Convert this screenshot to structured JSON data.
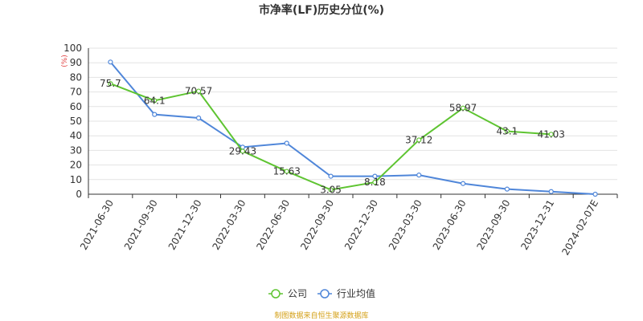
{
  "chart_data": {
    "type": "line",
    "title": "市净率(LF)历史分位(%)",
    "unit_label": "(%)",
    "ylim": [
      0,
      100
    ],
    "yticks": [
      0,
      10,
      20,
      30,
      40,
      50,
      60,
      70,
      80,
      90,
      100
    ],
    "categories": [
      "2021-06-30",
      "2021-09-30",
      "2021-12-30",
      "2022-03-30",
      "2022-06-30",
      "2022-09-30",
      "2022-12-30",
      "2023-03-30",
      "2023-06-30",
      "2023-09-30",
      "2023-12-31",
      "2024-02-07E"
    ],
    "grid": true,
    "legend_position": "bottom-center",
    "series": [
      {
        "name": "公司",
        "color": "#5ec431",
        "values": [
          75.7,
          64.1,
          70.57,
          29.43,
          15.63,
          3.05,
          8.18,
          37.12,
          58.97,
          43.1,
          41.03,
          null
        ],
        "labels": [
          "75.7",
          "64.1",
          "70.57",
          "29.43",
          "15.63",
          "3.05",
          "8.18",
          "37.12",
          "58.97",
          "43.1",
          "41.03",
          ""
        ]
      },
      {
        "name": "行业均值",
        "color": "#4f86d9",
        "values": [
          90.5,
          54.6,
          52.2,
          32.2,
          34.9,
          12.3,
          12.3,
          13.1,
          7.3,
          3.5,
          1.8,
          0
        ],
        "labels": []
      }
    ]
  },
  "source_note": "制图数据来自恒生聚源数据库"
}
